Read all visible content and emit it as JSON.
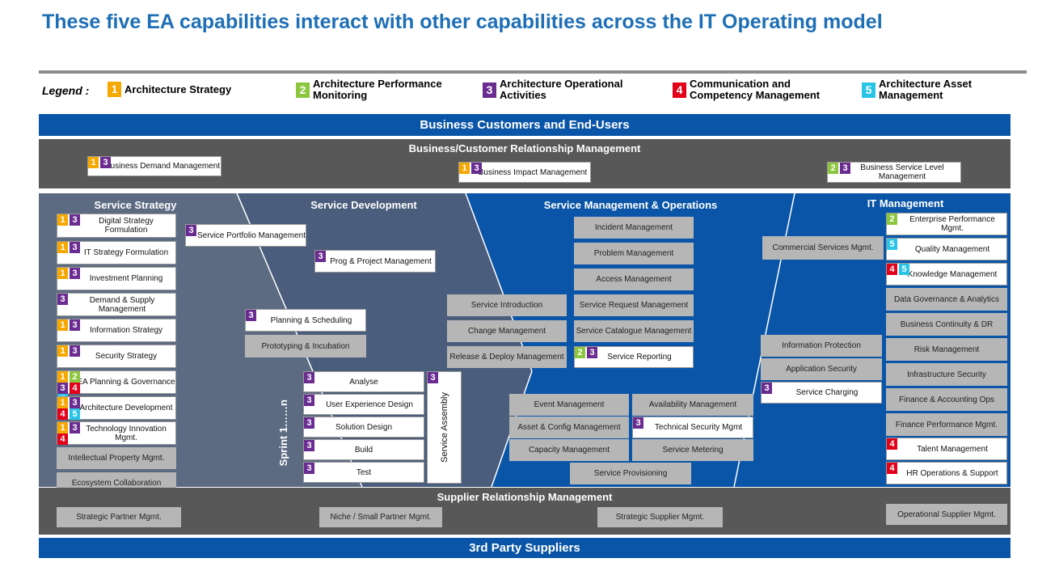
{
  "title": "These five EA capabilities interact with other capabilities across the IT Operating model",
  "legend": {
    "prefix": "Legend :",
    "items": [
      {
        "num": "1",
        "label": "Architecture Strategy",
        "color": "#f5a800"
      },
      {
        "num": "2",
        "label": "Architecture Performance Monitoring",
        "color": "#8cc63f"
      },
      {
        "num": "3",
        "label": "Architecture Operational Activities",
        "color": "#6a2c91"
      },
      {
        "num": "4",
        "label": "Communication and Competency Management",
        "color": "#e2001a"
      },
      {
        "num": "5",
        "label": "Architecture Asset Management",
        "color": "#29c4e6"
      }
    ]
  },
  "bands": {
    "customers": "Business Customers and End-Users",
    "relationship": "Business/Customer Relationship Management",
    "supplier_rel": "Supplier Relationship Management",
    "third_party": "3rd Party Suppliers"
  },
  "relationship_boxes": [
    {
      "label": "Business Demand Management"
    },
    {
      "label": "Business Impact Management"
    },
    {
      "label": "Business Service Level Management"
    }
  ],
  "sections": {
    "strategy": "Service Strategy",
    "development": "Service Development",
    "operations": "Service Management & Operations",
    "it_mgmt": "IT Management"
  },
  "strategy_boxes": [
    {
      "label": "Digital Strategy Formulation"
    },
    {
      "label": "IT Strategy Formulation"
    },
    {
      "label": "Investment Planning"
    },
    {
      "label": "Demand & Supply Management"
    },
    {
      "label": "Information Strategy"
    },
    {
      "label": "Security Strategy"
    },
    {
      "label": "EA Planning & Governance"
    },
    {
      "label": "Architecture Development"
    },
    {
      "label": "Technology Innovation Mgmt."
    },
    {
      "label": "Intellectual Property Mgmt."
    },
    {
      "label": "Ecosystem Collaboration"
    }
  ],
  "development_boxes": [
    {
      "label": "Service Portfolio Management"
    },
    {
      "label": "Prog & Project Management"
    },
    {
      "label": "Planning & Scheduling"
    },
    {
      "label": "Prototyping & Incubation"
    },
    {
      "label": "Analyse"
    },
    {
      "label": "User Experience Design"
    },
    {
      "label": "Solution Design"
    },
    {
      "label": "Build"
    },
    {
      "label": "Test"
    }
  ],
  "sprint_label": "Sprint 1……n",
  "service_assembly": "Service Assembly",
  "operations_boxes": [
    {
      "label": "Incident Management"
    },
    {
      "label": "Problem Management"
    },
    {
      "label": "Access Management"
    },
    {
      "label": "Service Request Management"
    },
    {
      "label": "Service Catalogue Management"
    },
    {
      "label": "Service Reporting"
    },
    {
      "label": "Service Introduction"
    },
    {
      "label": "Change Management"
    },
    {
      "label": "Release & Deploy Management"
    },
    {
      "label": "Event Management"
    },
    {
      "label": "Asset & Config Management"
    },
    {
      "label": "Capacity Management"
    },
    {
      "label": "Availability Management"
    },
    {
      "label": "Technical Security Mgmt"
    },
    {
      "label": "Service Metering"
    },
    {
      "label": "Service Provisioning"
    }
  ],
  "itm_left_boxes": [
    {
      "label": "Commercial Services Mgmt."
    },
    {
      "label": "Information Protection"
    },
    {
      "label": "Application Security"
    },
    {
      "label": "Service Charging"
    }
  ],
  "itm_boxes": [
    {
      "label": "Enterprise Performance Mgmt."
    },
    {
      "label": "Quality Management"
    },
    {
      "label": "Knowledge Management"
    },
    {
      "label": "Data Governance & Analytics"
    },
    {
      "label": "Business Continuity & DR"
    },
    {
      "label": "Risk Management"
    },
    {
      "label": "Infrastructure Security"
    },
    {
      "label": "Finance & Accounting Ops"
    },
    {
      "label": "Finance Performance Mgmt."
    },
    {
      "label": "Talent Management"
    },
    {
      "label": "HR Operations & Support"
    }
  ],
  "supplier_boxes": [
    {
      "label": "Strategic Partner Mgmt."
    },
    {
      "label": "Niche / Small Partner Mgmt."
    },
    {
      "label": "Strategic Supplier Mgmt."
    },
    {
      "label": "Operational Supplier Mgmt."
    }
  ]
}
